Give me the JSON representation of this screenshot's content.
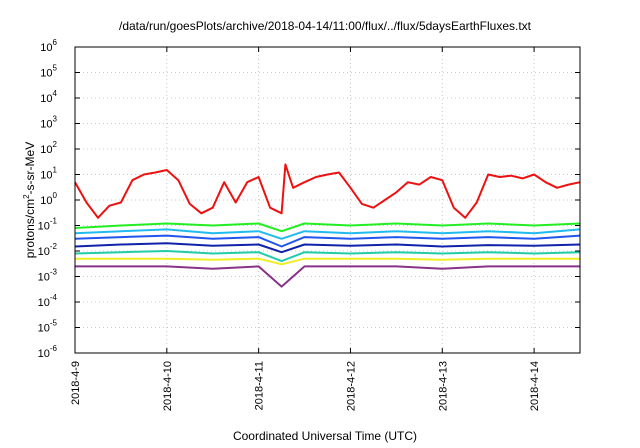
{
  "chart_data": {
    "type": "line",
    "title": "/data/run/goesPlots/archive/2018-04-14/11:00/flux/../flux/5daysEarthFluxes.txt",
    "xlabel": "Coordinated Universal Time (UTC)",
    "ylabel_parts": [
      "protons/cm",
      "2",
      "-s-sr-MeV"
    ],
    "y_scale": "log",
    "ylim": [
      1e-06,
      1000000.0
    ],
    "y_ticks": [
      {
        "base": "10",
        "exp": "-6"
      },
      {
        "base": "10",
        "exp": "-5"
      },
      {
        "base": "10",
        "exp": "-4"
      },
      {
        "base": "10",
        "exp": "-3"
      },
      {
        "base": "10",
        "exp": "-2"
      },
      {
        "base": "10",
        "exp": "-1"
      },
      {
        "base": "10",
        "exp": "0"
      },
      {
        "base": "10",
        "exp": "1"
      },
      {
        "base": "10",
        "exp": "2"
      },
      {
        "base": "10",
        "exp": "3"
      },
      {
        "base": "10",
        "exp": "4"
      },
      {
        "base": "10",
        "exp": "5"
      },
      {
        "base": "10",
        "exp": "6"
      }
    ],
    "x_ticks": [
      "2018-4-9",
      "2018-4-10",
      "2018-4-11",
      "2018-4-12",
      "2018-4-13",
      "2018-4-14"
    ],
    "xlim": [
      "2018-04-09 00:00",
      "2018-04-14 12:00"
    ],
    "grid": true,
    "legend": "none",
    "series": [
      {
        "color": "#ee1111",
        "x": [
          "2018-04-09 00:00",
          "2018-04-09 03:00",
          "2018-04-09 06:00",
          "2018-04-09 09:00",
          "2018-04-09 12:00",
          "2018-04-09 15:00",
          "2018-04-09 18:00",
          "2018-04-09 21:00",
          "2018-04-10 00:00",
          "2018-04-10 03:00",
          "2018-04-10 06:00",
          "2018-04-10 09:00",
          "2018-04-10 12:00",
          "2018-04-10 15:00",
          "2018-04-10 18:00",
          "2018-04-10 21:00",
          "2018-04-11 00:00",
          "2018-04-11 03:00",
          "2018-04-11 06:00",
          "2018-04-11 07:00",
          "2018-04-11 09:00",
          "2018-04-11 12:00",
          "2018-04-11 15:00",
          "2018-04-11 18:00",
          "2018-04-11 21:00",
          "2018-04-12 00:00",
          "2018-04-12 03:00",
          "2018-04-12 06:00",
          "2018-04-12 09:00",
          "2018-04-12 12:00",
          "2018-04-12 15:00",
          "2018-04-12 18:00",
          "2018-04-12 21:00",
          "2018-04-13 00:00",
          "2018-04-13 03:00",
          "2018-04-13 06:00",
          "2018-04-13 09:00",
          "2018-04-13 12:00",
          "2018-04-13 15:00",
          "2018-04-13 18:00",
          "2018-04-13 21:00",
          "2018-04-14 00:00",
          "2018-04-14 03:00",
          "2018-04-14 06:00",
          "2018-04-14 09:00",
          "2018-04-14 12:00"
        ],
        "y": [
          5,
          0.8,
          0.2,
          0.6,
          0.8,
          6,
          10,
          12,
          15,
          6,
          0.7,
          0.3,
          0.5,
          5,
          0.8,
          5,
          8,
          0.5,
          0.3,
          25,
          3,
          5,
          8,
          10,
          12,
          3,
          0.7,
          0.5,
          1,
          2,
          5,
          4,
          8,
          6,
          0.5,
          0.2,
          0.8,
          10,
          8,
          9,
          7,
          10,
          5,
          3,
          4,
          5
        ]
      },
      {
        "color": "#22ee22",
        "x": [
          "2018-04-09 00:00",
          "2018-04-09 12:00",
          "2018-04-10 00:00",
          "2018-04-10 12:00",
          "2018-04-11 00:00",
          "2018-04-11 06:00",
          "2018-04-11 12:00",
          "2018-04-12 00:00",
          "2018-04-12 12:00",
          "2018-04-13 00:00",
          "2018-04-13 12:00",
          "2018-04-14 00:00",
          "2018-04-14 12:00"
        ],
        "y": [
          0.08,
          0.1,
          0.12,
          0.1,
          0.12,
          0.06,
          0.12,
          0.1,
          0.12,
          0.1,
          0.12,
          0.1,
          0.12
        ]
      },
      {
        "color": "#22bbee",
        "x": [
          "2018-04-09 00:00",
          "2018-04-09 12:00",
          "2018-04-10 00:00",
          "2018-04-10 12:00",
          "2018-04-11 00:00",
          "2018-04-11 06:00",
          "2018-04-11 12:00",
          "2018-04-12 00:00",
          "2018-04-12 12:00",
          "2018-04-13 00:00",
          "2018-04-13 12:00",
          "2018-04-14 00:00",
          "2018-04-14 12:00"
        ],
        "y": [
          0.05,
          0.06,
          0.07,
          0.05,
          0.06,
          0.03,
          0.06,
          0.05,
          0.06,
          0.05,
          0.06,
          0.05,
          0.07
        ]
      },
      {
        "color": "#2255ee",
        "x": [
          "2018-04-09 00:00",
          "2018-04-09 12:00",
          "2018-04-10 00:00",
          "2018-04-10 12:00",
          "2018-04-11 00:00",
          "2018-04-11 06:00",
          "2018-04-11 12:00",
          "2018-04-12 00:00",
          "2018-04-12 12:00",
          "2018-04-13 00:00",
          "2018-04-13 12:00",
          "2018-04-14 00:00",
          "2018-04-14 12:00"
        ],
        "y": [
          0.03,
          0.035,
          0.04,
          0.03,
          0.035,
          0.015,
          0.035,
          0.03,
          0.035,
          0.03,
          0.035,
          0.03,
          0.04
        ]
      },
      {
        "color": "#1122aa",
        "x": [
          "2018-04-09 00:00",
          "2018-04-09 12:00",
          "2018-04-10 00:00",
          "2018-04-10 12:00",
          "2018-04-11 00:00",
          "2018-04-11 06:00",
          "2018-04-11 12:00",
          "2018-04-12 00:00",
          "2018-04-12 12:00",
          "2018-04-13 00:00",
          "2018-04-13 12:00",
          "2018-04-14 00:00",
          "2018-04-14 12:00"
        ],
        "y": [
          0.015,
          0.018,
          0.02,
          0.016,
          0.018,
          0.009,
          0.018,
          0.016,
          0.018,
          0.015,
          0.017,
          0.016,
          0.018
        ]
      },
      {
        "color": "#22ccaa",
        "x": [
          "2018-04-09 00:00",
          "2018-04-09 12:00",
          "2018-04-10 00:00",
          "2018-04-10 12:00",
          "2018-04-11 00:00",
          "2018-04-11 06:00",
          "2018-04-11 12:00",
          "2018-04-12 00:00",
          "2018-04-12 12:00",
          "2018-04-13 00:00",
          "2018-04-13 12:00",
          "2018-04-14 00:00",
          "2018-04-14 12:00"
        ],
        "y": [
          0.008,
          0.009,
          0.01,
          0.008,
          0.009,
          0.004,
          0.009,
          0.008,
          0.009,
          0.008,
          0.009,
          0.008,
          0.009
        ]
      },
      {
        "color": "#eeee22",
        "x": [
          "2018-04-09 00:00",
          "2018-04-09 12:00",
          "2018-04-10 00:00",
          "2018-04-10 12:00",
          "2018-04-11 00:00",
          "2018-04-11 06:00",
          "2018-04-11 12:00",
          "2018-04-12 00:00",
          "2018-04-12 12:00",
          "2018-04-13 00:00",
          "2018-04-13 12:00",
          "2018-04-14 00:00",
          "2018-04-14 12:00"
        ],
        "y": [
          0.005,
          0.005,
          0.005,
          0.0045,
          0.005,
          0.003,
          0.005,
          0.005,
          0.005,
          0.0045,
          0.005,
          0.005,
          0.005
        ]
      },
      {
        "color": "#883388",
        "x": [
          "2018-04-09 00:00",
          "2018-04-09 12:00",
          "2018-04-10 00:00",
          "2018-04-10 12:00",
          "2018-04-11 00:00",
          "2018-04-11 06:00",
          "2018-04-11 12:00",
          "2018-04-12 00:00",
          "2018-04-12 12:00",
          "2018-04-13 00:00",
          "2018-04-13 12:00",
          "2018-04-14 00:00",
          "2018-04-14 12:00"
        ],
        "y": [
          0.0025,
          0.0025,
          0.0025,
          0.002,
          0.0025,
          0.0004,
          0.0025,
          0.0025,
          0.0025,
          0.002,
          0.0025,
          0.0025,
          0.0025
        ]
      }
    ]
  }
}
